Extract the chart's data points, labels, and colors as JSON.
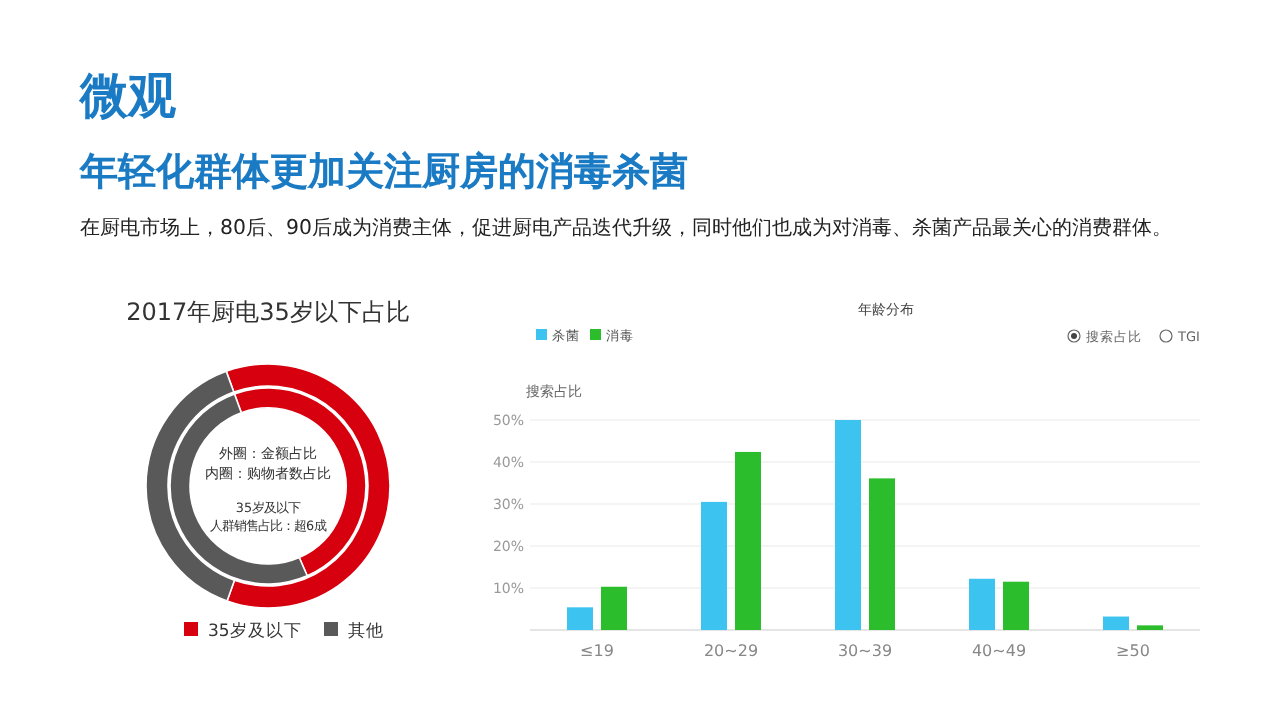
{
  "chart_data": [
    {
      "type": "other",
      "title": "微观",
      "subtitle": "年轻化群体更加关注厨房的消毒杀菌",
      "annotations": [
        "在厨电市场上，80后、90后成为消费主体，促进厨电产品迭代升级，同时他们也成为对消毒、杀菌产品最关心的消费群体。"
      ]
    },
    {
      "type": "donut",
      "title": "2017年厨电35岁以下占比",
      "categories": [
        "35岁及以下",
        "其他"
      ],
      "series": [
        {
          "values": [
            61,
            39
          ],
          "colors": [
            "#d7000f",
            "#595959"
          ]
        },
        {
          "values": [
            49,
            51
          ],
          "colors": [
            "#d7000f",
            "#595959"
          ]
        }
      ],
      "annotations": [
        "外圈：金额占比",
        "内圈：购物者数占比",
        "35岁及以下",
        "人群销售占比：超6成"
      ],
      "legend": "bottom"
    },
    {
      "type": "bar",
      "title": "年龄分布",
      "ylabel": "搜索占比",
      "categories": [
        "≤19",
        "20~29",
        "30~39",
        "40~49",
        "≥50"
      ],
      "series": [
        {
          "name": "杀菌",
          "color": "#3cc3f0",
          "values": [
            5.4,
            30.5,
            50,
            12.2,
            3.2
          ]
        },
        {
          "name": "消毒",
          "color": "#2bbd2b",
          "values": [
            10.3,
            42.4,
            36.1,
            11.5,
            1.1
          ]
        }
      ],
      "ylim": [
        0,
        50
      ],
      "yticks": [
        {
          "value": 0,
          "label": null
        },
        {
          "value": 10,
          "label": "10%"
        },
        {
          "value": 20,
          "label": "20%"
        },
        {
          "value": 30,
          "label": "30%"
        },
        {
          "value": 40,
          "label": "40%"
        },
        {
          "value": 50,
          "label": "50%"
        }
      ],
      "grid": "y",
      "legend": "top left",
      "annotations": [
        "搜索占比",
        "TGI"
      ]
    }
  ]
}
